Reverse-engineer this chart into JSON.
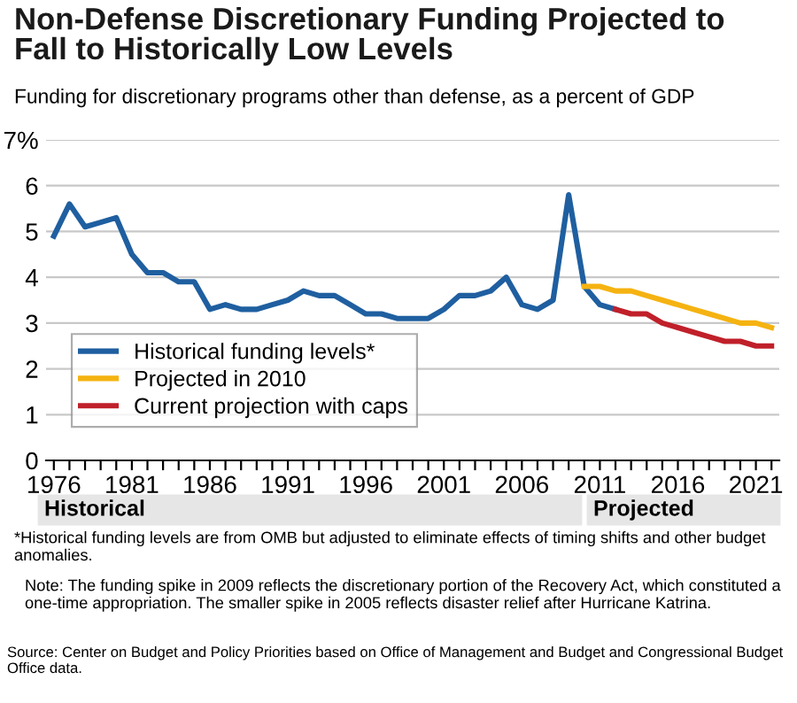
{
  "chart_data": {
    "type": "line",
    "title": "Non-Defense Discretionary Funding Projected to\nFall to Historically Low Levels",
    "subtitle": "Funding for discretionary programs other than defense, as a percent of GDP",
    "series": [
      {
        "name": "Historical funding levels*",
        "color": "#1f5fa0",
        "x": [
          1976,
          1977,
          1978,
          1979,
          1980,
          1981,
          1982,
          1983,
          1984,
          1985,
          1986,
          1987,
          1988,
          1989,
          1990,
          1991,
          1992,
          1993,
          1994,
          1995,
          1996,
          1997,
          1998,
          1999,
          2000,
          2001,
          2002,
          2003,
          2004,
          2005,
          2006,
          2007,
          2008,
          2009,
          2010,
          2011,
          2012
        ],
        "values": [
          4.9,
          5.6,
          5.1,
          5.2,
          5.3,
          4.5,
          4.1,
          4.1,
          3.9,
          3.9,
          3.3,
          3.4,
          3.3,
          3.3,
          3.4,
          3.5,
          3.7,
          3.6,
          3.6,
          3.4,
          3.2,
          3.2,
          3.1,
          3.1,
          3.1,
          3.3,
          3.6,
          3.6,
          3.7,
          4.0,
          3.4,
          3.3,
          3.5,
          5.8,
          3.8,
          3.4,
          3.3
        ]
      },
      {
        "name": "Projected in 2010",
        "color": "#f5b311",
        "x": [
          2010,
          2011,
          2012,
          2013,
          2014,
          2015,
          2016,
          2017,
          2018,
          2019,
          2020,
          2021,
          2022
        ],
        "values": [
          3.8,
          3.8,
          3.7,
          3.7,
          3.6,
          3.5,
          3.4,
          3.3,
          3.2,
          3.1,
          3.0,
          3.0,
          2.9
        ]
      },
      {
        "name": "Current projection with caps",
        "color": "#c0202a",
        "x": [
          2012,
          2013,
          2014,
          2015,
          2016,
          2017,
          2018,
          2019,
          2020,
          2021,
          2022
        ],
        "values": [
          3.3,
          3.2,
          3.2,
          3.0,
          2.9,
          2.8,
          2.7,
          2.6,
          2.6,
          2.5,
          2.5
        ]
      }
    ],
    "xlim": [
      1975.5,
      2022.5
    ],
    "xticks": [
      1976,
      {
        "value": 1977,
        "label": null
      },
      {
        "value": 1978,
        "label": null
      },
      {
        "value": 1979,
        "label": null
      },
      {
        "value": 1980,
        "label": null
      },
      1981,
      {
        "value": 1982,
        "label": null
      },
      {
        "value": 1983,
        "label": null
      },
      {
        "value": 1984,
        "label": null
      },
      {
        "value": 1985,
        "label": null
      },
      1986,
      {
        "value": 1987,
        "label": null
      },
      {
        "value": 1988,
        "label": null
      },
      {
        "value": 1989,
        "label": null
      },
      {
        "value": 1990,
        "label": null
      },
      1991,
      {
        "value": 1992,
        "label": null
      },
      {
        "value": 1993,
        "label": null
      },
      {
        "value": 1994,
        "label": null
      },
      {
        "value": 1995,
        "label": null
      },
      1996,
      {
        "value": 1997,
        "label": null
      },
      {
        "value": 1998,
        "label": null
      },
      {
        "value": 1999,
        "label": null
      },
      {
        "value": 2000,
        "label": null
      },
      2001,
      {
        "value": 2002,
        "label": null
      },
      {
        "value": 2003,
        "label": null
      },
      {
        "value": 2004,
        "label": null
      },
      {
        "value": 2005,
        "label": null
      },
      2006,
      {
        "value": 2007,
        "label": null
      },
      {
        "value": 2008,
        "label": null
      },
      {
        "value": 2009,
        "label": null
      },
      {
        "value": 2010,
        "label": null
      },
      2011,
      {
        "value": 2012,
        "label": null
      },
      {
        "value": 2013,
        "label": null
      },
      {
        "value": 2014,
        "label": null
      },
      {
        "value": 2015,
        "label": null
      },
      2016,
      {
        "value": 2017,
        "label": null
      },
      {
        "value": 2018,
        "label": null
      },
      {
        "value": 2019,
        "label": null
      },
      {
        "value": 2020,
        "label": null
      },
      2021,
      {
        "value": 2022,
        "label": null
      }
    ],
    "ylim": [
      0,
      7
    ],
    "yticks": [
      0,
      1,
      2,
      3,
      4,
      5,
      6,
      {
        "value": 7,
        "label": "7%"
      }
    ],
    "grid": "y",
    "legend": "bottom left",
    "marker": "none",
    "line_style": "solid",
    "annotations": [
      "Historical",
      "Projected",
      "*Historical funding levels are from OMB but adjusted to eliminate effects of timing shifts and other budget anomalies.",
      "Note: The funding spike in 2009 reflects the discretionary portion of the Recovery Act, which constituted a one-time appropriation. The smaller spike in 2005 reflects disaster relief after Hurricane Katrina.",
      "Source: Center on Budget and Policy Priorities based on Office of Management and Budget and Congressional Budget Office data."
    ]
  }
}
